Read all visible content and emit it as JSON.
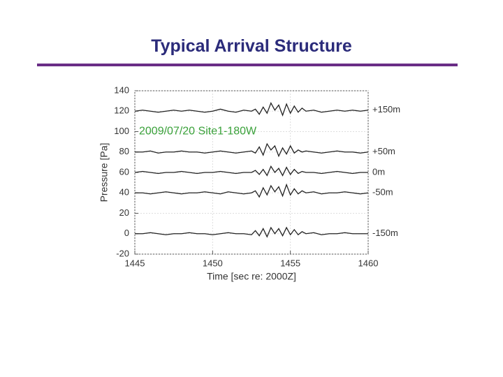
{
  "slide": {
    "title": "Typical Arrival Structure"
  },
  "chart_data": {
    "type": "line",
    "ylabel": "Pressure [Pa]",
    "xlabel": "Time [sec re: 2000Z]",
    "annotation": "2009/07/20  Site1-180W",
    "annotation_color": "#3aa13a",
    "xlim": [
      1445,
      1460
    ],
    "xticks": [
      1445,
      1450,
      1455,
      1460
    ],
    "ylim": [
      -20,
      140
    ],
    "yticks": [
      -20,
      0,
      20,
      40,
      60,
      80,
      100,
      120,
      140
    ],
    "grid": true,
    "x": [
      1445,
      1445.5,
      1446,
      1446.5,
      1447,
      1447.5,
      1448,
      1448.5,
      1449,
      1449.5,
      1450,
      1450.5,
      1451,
      1451.5,
      1452,
      1452.5,
      1452.75,
      1453,
      1453.25,
      1453.5,
      1453.75,
      1454,
      1454.25,
      1454.5,
      1454.75,
      1455,
      1455.25,
      1455.5,
      1455.75,
      1456,
      1456.5,
      1457,
      1457.5,
      1458,
      1458.5,
      1459,
      1459.5,
      1460
    ],
    "series": [
      {
        "name": "+150m",
        "color": "#222222",
        "values": [
          120,
          121,
          120,
          119,
          120,
          121,
          120,
          121,
          120,
          119,
          120,
          122,
          120,
          119,
          121,
          120,
          122,
          117,
          124,
          118,
          128,
          121,
          126,
          116,
          127,
          118,
          125,
          119,
          123,
          120,
          121,
          119,
          120,
          121,
          120,
          121,
          120,
          121
        ]
      },
      {
        "name": "+50m",
        "color": "#222222",
        "values": [
          80,
          80,
          81,
          79,
          80,
          80,
          81,
          80,
          80,
          79,
          80,
          81,
          80,
          79,
          80,
          81,
          79,
          85,
          77,
          88,
          82,
          86,
          76,
          84,
          78,
          86,
          79,
          82,
          80,
          81,
          80,
          79,
          80,
          81,
          80,
          80,
          79,
          80
        ]
      },
      {
        "name": "0m",
        "color": "#222222",
        "values": [
          60,
          61,
          60,
          59,
          60,
          60,
          61,
          60,
          59,
          60,
          60,
          61,
          60,
          59,
          60,
          60,
          62,
          58,
          63,
          57,
          66,
          60,
          64,
          57,
          65,
          58,
          63,
          59,
          61,
          60,
          60,
          59,
          60,
          61,
          60,
          59,
          60,
          60
        ]
      },
      {
        "name": "-50m",
        "color": "#222222",
        "values": [
          40,
          40,
          39,
          40,
          41,
          40,
          39,
          40,
          40,
          41,
          40,
          39,
          41,
          40,
          39,
          40,
          42,
          36,
          45,
          38,
          47,
          41,
          46,
          37,
          48,
          38,
          44,
          39,
          42,
          40,
          41,
          39,
          40,
          40,
          41,
          40,
          39,
          40
        ]
      },
      {
        "name": "-150m",
        "color": "#222222",
        "values": [
          0,
          0,
          1,
          0,
          -1,
          0,
          0,
          1,
          0,
          0,
          -1,
          0,
          1,
          0,
          0,
          -1,
          3,
          -2,
          5,
          -3,
          6,
          0,
          5,
          -2,
          6,
          -1,
          4,
          -1,
          2,
          0,
          1,
          -1,
          0,
          0,
          1,
          0,
          0,
          0
        ]
      }
    ]
  }
}
